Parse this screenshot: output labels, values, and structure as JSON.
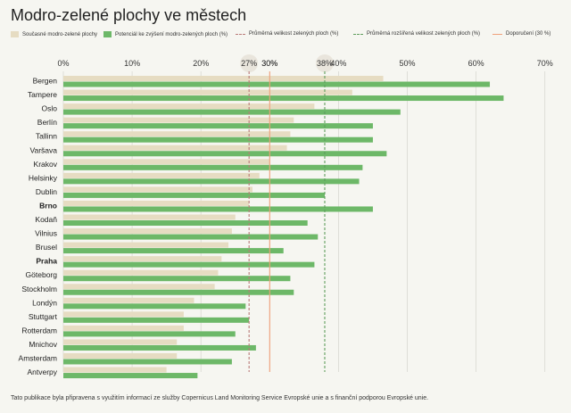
{
  "title": "Modro-zelené plochy ve městech",
  "footer": "Tato publikace byla připravena s využitím informací ze služby Copernicus Land Monitoring Service Evropské unie a s finanční podporou Evropské unie.",
  "colors": {
    "current": "#e6dcc2",
    "potential": "#6db868",
    "avg_line": "#b97a78",
    "avg_ext_line": "#5f9e5c",
    "recommend_line": "#f0a07a",
    "grid": "#d9d9d2",
    "circle": "#e9e5dc"
  },
  "legend": [
    {
      "key": "current",
      "label": "Současné modro-zelené plochy",
      "style": "swatch"
    },
    {
      "key": "potential",
      "label": "Potenciál ke zvýšení modro-zelených ploch (%)",
      "style": "swatch"
    },
    {
      "key": "avg_line",
      "label": "Průměrná velikost zelených ploch (%)",
      "style": "dashed"
    },
    {
      "key": "avg_ext_line",
      "label": "Průměrná rozšířená velikost zelených ploch (%)",
      "style": "dashed"
    },
    {
      "key": "recommend_line",
      "label": "Doporučení (30 %)",
      "style": "solid"
    }
  ],
  "chart_data": {
    "type": "bar",
    "orientation": "horizontal",
    "xlim": [
      0,
      70
    ],
    "xticks": [
      0,
      10,
      20,
      30,
      40,
      50,
      60,
      70
    ],
    "xtick_labels": [
      "0%",
      "10%",
      "20%",
      "30%",
      "40%",
      "50%",
      "60%",
      "70%"
    ],
    "reference_lines": [
      {
        "key": "avg_line",
        "value": 27,
        "label": "27%"
      },
      {
        "key": "recommend_line",
        "value": 30,
        "label": "30%"
      },
      {
        "key": "avg_ext_line",
        "value": 38,
        "label": "38%"
      }
    ],
    "categories": [
      "Bergen",
      "Tampere",
      "Oslo",
      "Berlín",
      "Tallinn",
      "Varšava",
      "Krakov",
      "Helsinky",
      "Dublin",
      "Brno",
      "Kodaň",
      "Vilnius",
      "Brusel",
      "Praha",
      "Göteborg",
      "Stockholm",
      "Londýn",
      "Stuttgart",
      "Rotterdam",
      "Mnichov",
      "Amsterdam",
      "Antverpy"
    ],
    "bold_categories": [
      "Brno",
      "Praha"
    ],
    "series": [
      {
        "key": "current",
        "name": "Současné modro-zelené plochy",
        "values": [
          46.5,
          42,
          36.5,
          33.5,
          33,
          32.5,
          30,
          28.5,
          27.5,
          27,
          25,
          24.5,
          24,
          23,
          22.5,
          22,
          19,
          17.5,
          17.5,
          16.5,
          16.5,
          15
        ]
      },
      {
        "key": "potential",
        "name": "Potenciál ke zvýšení modro-zelených ploch (%)",
        "values": [
          62,
          64,
          49,
          45,
          45,
          47,
          43.5,
          43,
          38,
          45,
          35.5,
          37,
          32,
          36.5,
          33,
          33.5,
          26.5,
          27,
          25,
          28,
          24.5,
          19.5
        ]
      }
    ]
  }
}
